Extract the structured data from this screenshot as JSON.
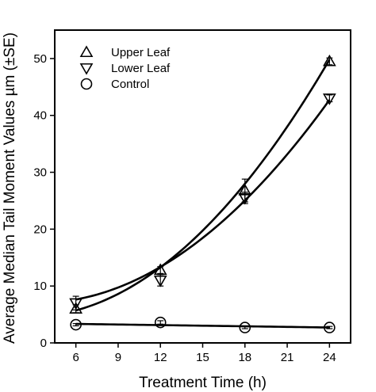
{
  "chart_data": {
    "type": "scatter",
    "xlabel": "Treatment Time (h)",
    "ylabel": "Average Median Tail Moment Values µm (±SE)",
    "xlim": [
      4.5,
      25.5
    ],
    "ylim": [
      0,
      55
    ],
    "xticks": [
      6,
      9,
      12,
      15,
      18,
      21,
      24
    ],
    "yticks": [
      0,
      10,
      20,
      30,
      40,
      50
    ],
    "legend_position": "top-left",
    "series": [
      {
        "name": "Upper Leaf",
        "marker": "triangle-up",
        "x": [
          6,
          12,
          18,
          24
        ],
        "y": [
          6.0,
          12.8,
          26.8,
          49.5
        ],
        "error": [
          0.7,
          0.6,
          2.0,
          0.6
        ],
        "fit": {
          "type": "quadratic",
          "coefficients": [
            5.27,
            -0.52,
            0.099
          ]
        }
      },
      {
        "name": "Lower Leaf",
        "marker": "triangle-down",
        "x": [
          6,
          12,
          18,
          24
        ],
        "y": [
          7.0,
          11.0,
          25.5,
          43.0
        ],
        "error": [
          1.2,
          1.0,
          1.0,
          0.6
        ],
        "fit": {
          "type": "quadratic",
          "coefficients": [
            7.88,
            -0.54,
            0.083
          ]
        }
      },
      {
        "name": "Control",
        "marker": "circle",
        "x": [
          6,
          12,
          18,
          24
        ],
        "y": [
          3.2,
          3.6,
          2.7,
          2.7
        ],
        "error": [
          0.2,
          0.3,
          0.2,
          0.2
        ],
        "fit": {
          "type": "linear",
          "coefficients": [
            3.55,
            -0.035
          ]
        }
      }
    ]
  }
}
